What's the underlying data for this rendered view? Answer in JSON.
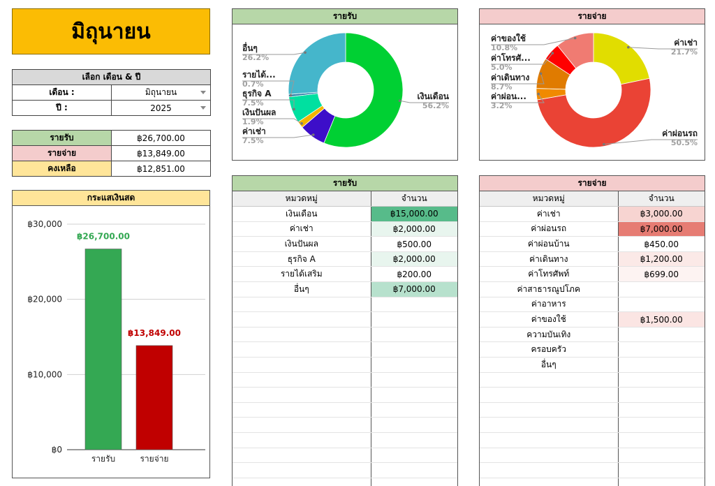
{
  "title": "มิถุนายน",
  "selector": {
    "header": "เลือก เดือน & ปี",
    "month_label": "เดือน :",
    "month_value": "มิถุนายน",
    "year_label": "ปี :",
    "year_value": "2025"
  },
  "summary": {
    "income_label": "รายรับ",
    "income_value": "฿26,700.00",
    "expense_label": "รายจ่าย",
    "expense_value": "฿13,849.00",
    "balance_label": "คงเหลือ",
    "balance_value": "฿12,851.00"
  },
  "colors": {
    "income_green": "#34a853",
    "expense_red": "#c00000",
    "title_yellow": "#fbbc04",
    "header_green": "#b7d7a8",
    "header_pink": "#f4cccc",
    "header_yellow": "#ffe599"
  },
  "cashflow": {
    "title": "กระแสเงินสด",
    "chart_data": {
      "type": "bar",
      "categories": [
        "รายรับ",
        "รายจ่าย"
      ],
      "values": [
        26700,
        13849
      ],
      "data_labels": [
        "฿26,700.00",
        "฿13,849.00"
      ],
      "colors": [
        "#34a853",
        "#c00000"
      ],
      "ylim": [
        0,
        30000
      ],
      "yticks": [
        0,
        10000,
        20000,
        30000
      ],
      "ytick_labels": [
        "฿0",
        "฿10,000",
        "฿20,000",
        "฿30,000"
      ],
      "grid": true
    }
  },
  "income_pie": {
    "title": "รายรับ",
    "chart_data": {
      "type": "pie",
      "donut": true,
      "slices": [
        {
          "label": "เงินเดือน",
          "pct_label": "56.2%",
          "value": 56.2,
          "color": "#00d033"
        },
        {
          "label": "ค่าเช่า",
          "pct_label": "7.5%",
          "value": 7.5,
          "color": "#3d0ec9"
        },
        {
          "label": "เงินปันผล",
          "pct_label": "1.9%",
          "value": 1.9,
          "color": "#f4b400"
        },
        {
          "label": "ธุรกิจ A",
          "pct_label": "7.5%",
          "value": 7.5,
          "color": "#00e0a0"
        },
        {
          "label": "รายได้...",
          "pct_label": "0.7%",
          "value": 0.7,
          "color": "#2d7fa8"
        },
        {
          "label": "อื่นๆ",
          "pct_label": "26.2%",
          "value": 26.2,
          "color": "#45b6cb"
        }
      ]
    }
  },
  "expense_pie": {
    "title": "รายจ่าย",
    "chart_data": {
      "type": "pie",
      "donut": true,
      "slices": [
        {
          "label": "ค่าเช่า",
          "pct_label": "21.7%",
          "value": 21.7,
          "color": "#e1dd00"
        },
        {
          "label": "ค่าผ่อนรถ",
          "pct_label": "50.5%",
          "value": 50.5,
          "color": "#ea4335"
        },
        {
          "label": "ค่าผ่อน...",
          "pct_label": "3.2%",
          "value": 3.2,
          "color": "#f08a00"
        },
        {
          "label": "ค่าเดินทาง",
          "pct_label": "8.7%",
          "value": 8.7,
          "color": "#e07b00"
        },
        {
          "label": "ค่าโทรศั...",
          "pct_label": "5.0%",
          "value": 5.0,
          "color": "#ff0000"
        },
        {
          "label": "ค่าของใช้",
          "pct_label": "10.8%",
          "value": 10.8,
          "color": "#f07b72"
        }
      ]
    }
  },
  "income_table": {
    "title": "รายรับ",
    "col_category": "หมวดหมู่",
    "col_amount": "จำนวน",
    "rows": [
      {
        "category": "เงินเดือน",
        "amount": "฿15,000.00",
        "shade": "#57bb8a"
      },
      {
        "category": "ค่าเช่า",
        "amount": "฿2,000.00",
        "shade": "#e8f5ee"
      },
      {
        "category": "เงินปันผล",
        "amount": "฿500.00",
        "shade": ""
      },
      {
        "category": "ธุรกิจ A",
        "amount": "฿2,000.00",
        "shade": "#e8f5ee"
      },
      {
        "category": "รายได้เสริม",
        "amount": "฿200.00",
        "shade": ""
      },
      {
        "category": "อื่นๆ",
        "amount": "฿7,000.00",
        "shade": "#b7e1cd"
      }
    ]
  },
  "expense_table": {
    "title": "รายจ่าย",
    "col_category": "หมวดหมู่",
    "col_amount": "จำนวน",
    "rows": [
      {
        "category": "ค่าเช่า",
        "amount": "฿3,000.00",
        "shade": "#f7d4d1"
      },
      {
        "category": "ค่าผ่อนรถ",
        "amount": "฿7,000.00",
        "shade": "#e67c73"
      },
      {
        "category": "ค่าผ่อนบ้าน",
        "amount": "฿450.00",
        "shade": ""
      },
      {
        "category": "ค่าเดินทาง",
        "amount": "฿1,200.00",
        "shade": "#fbe9e7"
      },
      {
        "category": "ค่าโทรศัพท์",
        "amount": "฿699.00",
        "shade": "#fdf3f2"
      },
      {
        "category": "ค่าสาธารณูปโภค",
        "amount": "",
        "shade": ""
      },
      {
        "category": "ค่าอาหาร",
        "amount": "",
        "shade": ""
      },
      {
        "category": "ค่าของใช้",
        "amount": "฿1,500.00",
        "shade": "#fbe5e3"
      },
      {
        "category": "ความบันเทิง",
        "amount": "",
        "shade": ""
      },
      {
        "category": "ครอบครัว",
        "amount": "",
        "shade": ""
      },
      {
        "category": "อื่นๆ",
        "amount": "",
        "shade": ""
      }
    ]
  }
}
